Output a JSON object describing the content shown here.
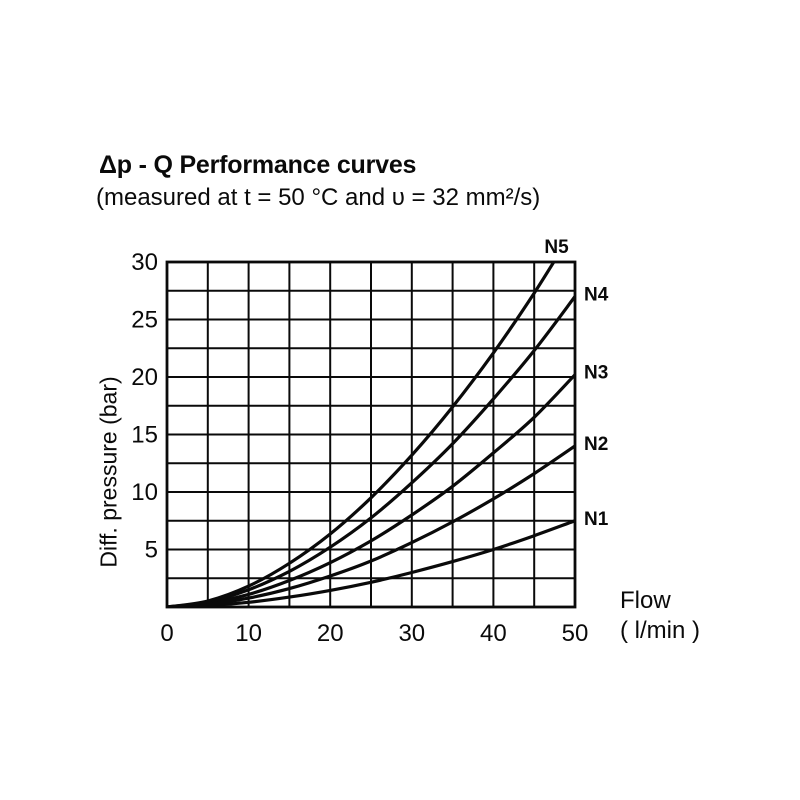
{
  "page": {
    "background": "#ffffff",
    "ink": "#0a0a0a"
  },
  "header": {
    "title": "Δp - Q Performance curves",
    "subtitle": "(measured at t = 50 °C and υ = 32 mm²/s)"
  },
  "axes": {
    "y_title": "Diff. pressure (bar)",
    "x_title_line1": "Flow",
    "x_title_line2": "( l/min )"
  },
  "chart_data": {
    "type": "line",
    "title": "Δp - Q Performance curves",
    "subtitle": "(measured at t = 50 °C and υ = 32 mm²/s)",
    "xlabel": "Flow ( l/min )",
    "ylabel": "Diff. pressure (bar)",
    "xlim": [
      0,
      50
    ],
    "ylim": [
      0,
      30
    ],
    "x_ticks": [
      0,
      10,
      20,
      30,
      40,
      50
    ],
    "y_ticks": [
      5,
      10,
      15,
      20,
      25,
      30
    ],
    "x_grid_step": 5,
    "y_grid_step": 2.5,
    "grid": true,
    "line_color": "#0a0a0a",
    "legend_position": "curve-end-labels",
    "x": [
      0,
      5,
      10,
      15,
      20,
      25,
      30,
      35,
      40,
      45,
      50
    ],
    "series": [
      {
        "name": "N1",
        "values": [
          0,
          0.12,
          0.41,
          0.86,
          1.44,
          2.15,
          3.0,
          3.95,
          5.0,
          6.2,
          7.5
        ]
      },
      {
        "name": "N2",
        "values": [
          0,
          0.22,
          0.77,
          1.6,
          2.7,
          4.0,
          5.6,
          7.4,
          9.4,
          11.6,
          14.0
        ]
      },
      {
        "name": "N3",
        "values": [
          0,
          0.32,
          1.1,
          2.3,
          3.85,
          5.75,
          8.0,
          10.5,
          13.4,
          16.5,
          20.2
        ]
      },
      {
        "name": "N4",
        "values": [
          0,
          0.43,
          1.5,
          3.1,
          5.2,
          7.75,
          10.8,
          14.2,
          18.1,
          22.3,
          27.0
        ]
      },
      {
        "name": "N5",
        "values": [
          0,
          0.52,
          1.82,
          3.8,
          6.35,
          9.5,
          13.2,
          17.4,
          22.1,
          27.3,
          33.0
        ]
      }
    ]
  }
}
